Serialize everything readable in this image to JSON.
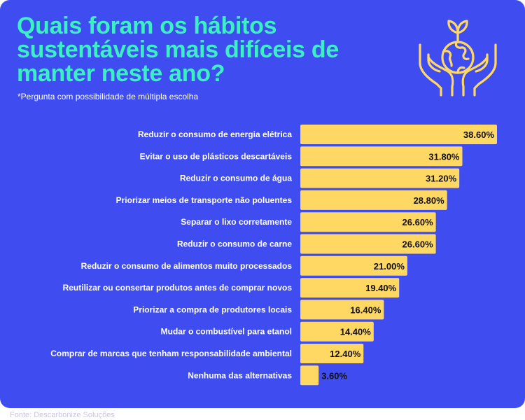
{
  "header": {
    "title": "Quais foram os hábitos sustentáveis mais difíceis de manter neste ano?",
    "subtitle": "*Pergunta com possibilidade de múltipla escolha"
  },
  "source": "Fonte: Descarbonize Soluções",
  "illustration": {
    "icon": "hands-holding-globe-with-sprout-icon"
  },
  "colors": {
    "background": "#3F4DF0",
    "title": "#3BF0C4",
    "bar": "#FFD763",
    "bar_label": "#111111",
    "category_label": "#ffffff"
  },
  "chart_data": {
    "type": "bar",
    "orientation": "horizontal",
    "categories": [
      "Reduzir o consumo de energia elétrica",
      "Evitar o uso de plásticos descartáveis",
      "Reduzir o consumo de água",
      "Priorizar meios de transporte não poluentes",
      "Separar o lixo corretamente",
      "Reduzir o consumo de carne",
      "Reduzir o consumo de alimentos muito processados",
      "Reutilizar ou consertar produtos antes de comprar novos",
      "Priorizar a compra de produtores locais",
      "Mudar o combustível para etanol",
      "Comprar de marcas que tenham responsabilidade ambiental",
      "Nenhuma das alternativas"
    ],
    "values": [
      38.6,
      31.8,
      31.2,
      28.8,
      26.6,
      26.6,
      21.0,
      19.4,
      16.4,
      14.4,
      12.4,
      3.6
    ],
    "value_labels": [
      "38.60%",
      "31.80%",
      "31.20%",
      "28.80%",
      "26.60%",
      "26.60%",
      "21.00%",
      "19.40%",
      "16.40%",
      "14.40%",
      "12.40%",
      "3.60%"
    ],
    "xlim": [
      0,
      38.6
    ],
    "grid": false,
    "legend": "none"
  }
}
